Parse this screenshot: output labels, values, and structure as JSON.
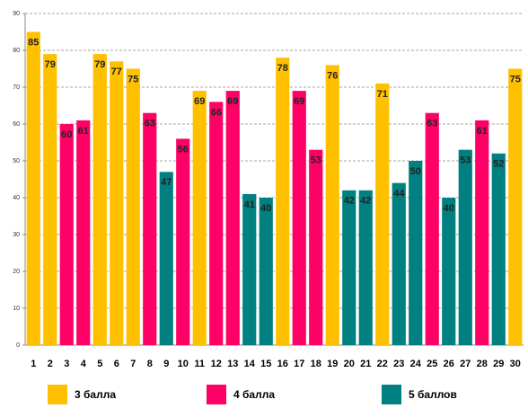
{
  "chart_data": {
    "type": "bar",
    "categories": [
      1,
      2,
      3,
      4,
      5,
      6,
      7,
      8,
      9,
      10,
      11,
      12,
      13,
      14,
      15,
      16,
      17,
      18,
      19,
      20,
      21,
      22,
      23,
      24,
      25,
      26,
      27,
      28,
      29,
      30
    ],
    "series": [
      {
        "name": "3 балла",
        "color": "#FFC000",
        "values": [
          85,
          79,
          null,
          null,
          79,
          77,
          75,
          null,
          null,
          null,
          69,
          null,
          null,
          null,
          null,
          78,
          null,
          null,
          76,
          null,
          null,
          71,
          null,
          null,
          null,
          null,
          null,
          null,
          null,
          75
        ]
      },
      {
        "name": "4 балла",
        "color": "#FF0066",
        "values": [
          null,
          null,
          60,
          61,
          null,
          null,
          null,
          63,
          null,
          56,
          null,
          66,
          69,
          null,
          null,
          null,
          69,
          53,
          null,
          null,
          null,
          null,
          null,
          null,
          63,
          null,
          null,
          61,
          null,
          null
        ]
      },
      {
        "name": "5 баллов",
        "color": "#008080",
        "values": [
          null,
          null,
          null,
          null,
          null,
          null,
          null,
          null,
          47,
          null,
          null,
          null,
          null,
          41,
          40,
          null,
          null,
          null,
          null,
          42,
          42,
          null,
          44,
          50,
          null,
          40,
          53,
          null,
          52,
          null
        ]
      }
    ],
    "ylim": [
      0,
      90
    ],
    "yticks": [
      0,
      10,
      20,
      30,
      40,
      50,
      60,
      70,
      80,
      90
    ],
    "grid": true
  }
}
